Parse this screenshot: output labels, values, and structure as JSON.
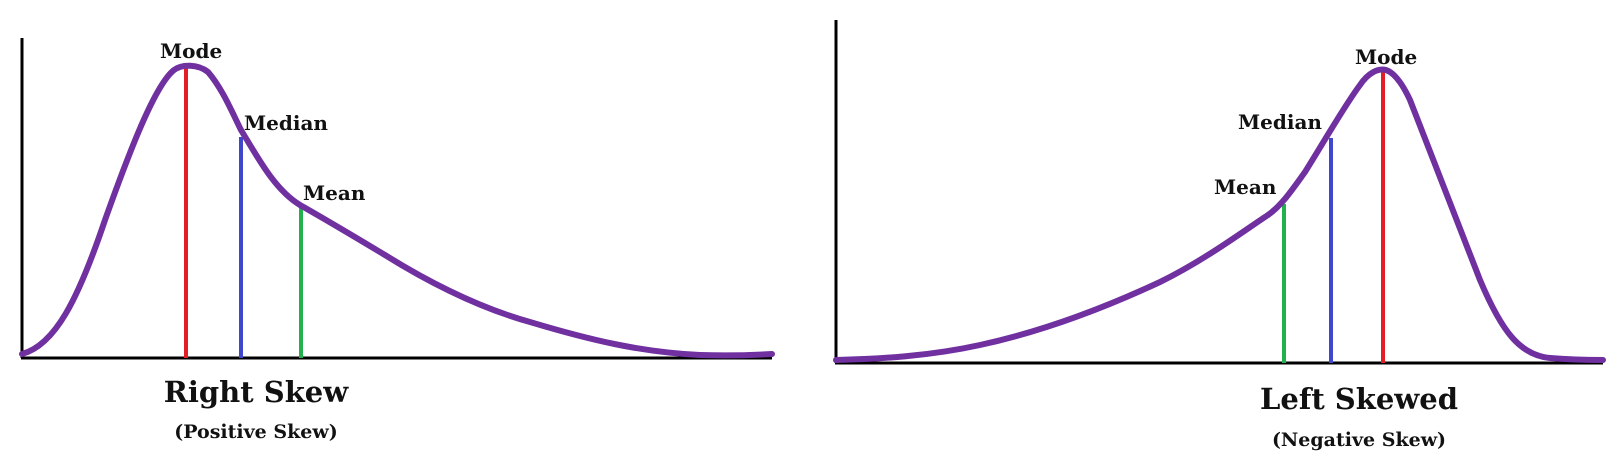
{
  "colors": {
    "curve": "#7030a0",
    "axis": "#000000",
    "mode": "#e41e26",
    "median": "#3f48cc",
    "mean": "#22b14c",
    "text": "#111111"
  },
  "left_panel": {
    "title": "Right Skew",
    "subtitle": "(Positive Skew)",
    "markers": {
      "mode": "Mode",
      "median": "Median",
      "mean": "Mean"
    }
  },
  "right_panel": {
    "title": "Left Skewed",
    "subtitle": "(Negative Skew)",
    "markers": {
      "mode": "Mode",
      "median": "Median",
      "mean": "Mean"
    }
  }
}
